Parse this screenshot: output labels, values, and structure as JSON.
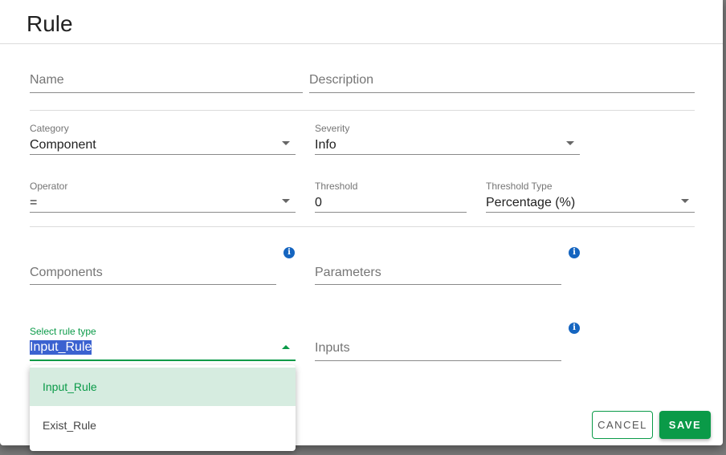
{
  "dialog": {
    "title": "Rule"
  },
  "fields": {
    "name": {
      "placeholder": "Name"
    },
    "description": {
      "placeholder": "Description"
    },
    "category": {
      "label": "Category",
      "value": "Component"
    },
    "severity": {
      "label": "Severity",
      "value": "Info"
    },
    "operator": {
      "label": "Operator",
      "value": "="
    },
    "threshold": {
      "label": "Threshold",
      "value": "0"
    },
    "threshold_type": {
      "label": "Threshold Type",
      "value": "Percentage (%)"
    },
    "components": {
      "placeholder": "Components"
    },
    "parameters": {
      "placeholder": "Parameters"
    },
    "rule_type": {
      "label": "Select rule type",
      "value": "Input_Rule",
      "options": [
        "Input_Rule",
        "Exist_Rule"
      ]
    },
    "inputs": {
      "placeholder": "Inputs"
    }
  },
  "icons": {
    "info": "info-icon",
    "dropdown": "chevron-down-icon"
  },
  "colors": {
    "accent": "#0a9a48",
    "info": "#1565c0",
    "highlight": "#d6ece0"
  },
  "actions": {
    "cancel": "CANCEL",
    "save": "SAVE"
  }
}
